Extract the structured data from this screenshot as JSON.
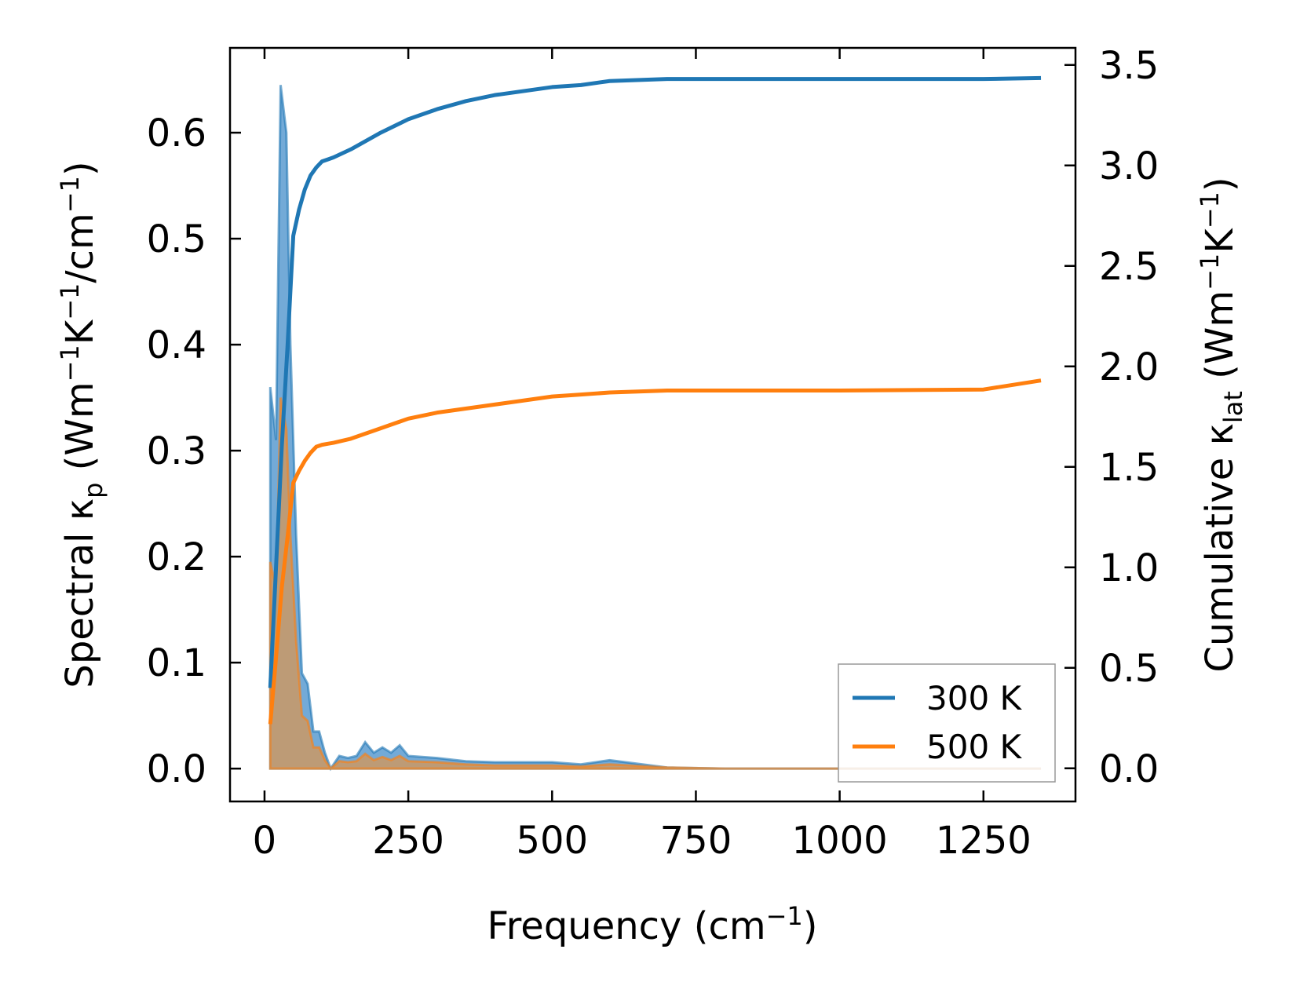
{
  "chart_data": {
    "type": "line",
    "xlabel": "Frequency (cm⁻¹)",
    "ylabel_left": "Spectral κₚ (Wm⁻¹K⁻¹/cm⁻¹)",
    "ylabel_right": "Cumulative κₗₐₜ (Wm⁻¹K⁻¹)",
    "xlim": [
      -60,
      1410
    ],
    "ylim_left": [
      -0.031,
      0.68
    ],
    "ylim_right": [
      -0.165,
      3.585
    ],
    "x_ticks": [
      0,
      250,
      500,
      750,
      1000,
      1250
    ],
    "y_ticks_left": [
      0.0,
      0.1,
      0.2,
      0.3,
      0.4,
      0.5,
      0.6
    ],
    "y_ticks_right": [
      0.0,
      0.5,
      1.0,
      1.5,
      2.0,
      2.5,
      3.0,
      3.5
    ],
    "legend": {
      "placement": "lower-right",
      "entries": [
        "300 K",
        "500 K"
      ]
    },
    "series": [
      {
        "name": "300 K",
        "color": "#1f77b4",
        "cumulative": {
          "x": [
            10,
            20,
            30,
            40,
            50,
            60,
            70,
            80,
            90,
            100,
            110,
            120,
            150,
            200,
            250,
            300,
            350,
            400,
            500,
            550,
            600,
            700,
            800,
            1000,
            1250,
            1350
          ],
          "y": [
            0.4,
            1.0,
            1.6,
            2.1,
            2.65,
            2.78,
            2.88,
            2.95,
            2.99,
            3.02,
            3.03,
            3.04,
            3.08,
            3.16,
            3.23,
            3.28,
            3.32,
            3.35,
            3.39,
            3.4,
            3.42,
            3.43,
            3.43,
            3.43,
            3.43,
            3.435
          ]
        },
        "spectral": {
          "x": [
            10,
            20,
            28,
            38,
            45,
            55,
            65,
            75,
            85,
            95,
            105,
            115,
            130,
            145,
            160,
            175,
            190,
            205,
            220,
            235,
            250,
            300,
            350,
            400,
            450,
            500,
            550,
            600,
            700,
            800,
            1000,
            1350
          ],
          "y": [
            0.36,
            0.31,
            0.645,
            0.6,
            0.4,
            0.22,
            0.09,
            0.08,
            0.035,
            0.035,
            0.015,
            0.0,
            0.012,
            0.01,
            0.012,
            0.025,
            0.015,
            0.02,
            0.015,
            0.022,
            0.012,
            0.01,
            0.007,
            0.006,
            0.006,
            0.006,
            0.004,
            0.008,
            0.001,
            0.0,
            0.0,
            0.0
          ]
        }
      },
      {
        "name": "500 K",
        "color": "#ff7f0e",
        "cumulative": {
          "x": [
            10,
            20,
            30,
            40,
            50,
            60,
            70,
            80,
            90,
            100,
            110,
            120,
            150,
            200,
            250,
            300,
            350,
            400,
            500,
            550,
            600,
            700,
            800,
            1000,
            1250,
            1350
          ],
          "y": [
            0.22,
            0.55,
            0.9,
            1.15,
            1.42,
            1.48,
            1.53,
            1.57,
            1.6,
            1.61,
            1.615,
            1.62,
            1.64,
            1.69,
            1.74,
            1.77,
            1.79,
            1.81,
            1.85,
            1.86,
            1.87,
            1.88,
            1.88,
            1.88,
            1.885,
            1.93
          ]
        },
        "spectral": {
          "x": [
            10,
            20,
            28,
            38,
            45,
            55,
            65,
            75,
            85,
            95,
            105,
            115,
            130,
            145,
            160,
            175,
            190,
            205,
            220,
            235,
            250,
            300,
            350,
            400,
            450,
            500,
            550,
            600,
            700,
            800,
            1000,
            1350
          ],
          "y": [
            0.195,
            0.17,
            0.35,
            0.32,
            0.22,
            0.12,
            0.05,
            0.045,
            0.02,
            0.02,
            0.008,
            0.0,
            0.007,
            0.006,
            0.007,
            0.014,
            0.008,
            0.011,
            0.008,
            0.012,
            0.007,
            0.006,
            0.004,
            0.003,
            0.003,
            0.003,
            0.002,
            0.004,
            0.001,
            0.0,
            0.0,
            0.0
          ]
        }
      }
    ]
  }
}
